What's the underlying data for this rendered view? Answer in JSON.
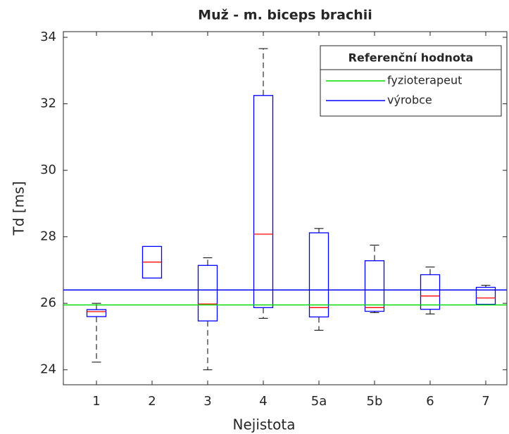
{
  "chart_data": {
    "type": "box",
    "title": "Muž - m. biceps brachii",
    "xlabel": "Nejistota",
    "ylabel": "Td [ms]",
    "categories": [
      "1",
      "2",
      "3",
      "4",
      "5a",
      "5b",
      "6",
      "7"
    ],
    "boxes": [
      {
        "whislo": 24.23,
        "q1": 25.6,
        "med": 25.75,
        "q3": 25.81,
        "whishi": 26.0
      },
      {
        "whislo": null,
        "q1": 26.76,
        "med": 27.24,
        "q3": 27.71,
        "whishi": null
      },
      {
        "whislo": 24.0,
        "q1": 25.47,
        "med": 25.98,
        "q3": 27.14,
        "whishi": 27.37
      },
      {
        "whislo": 25.55,
        "q1": 25.87,
        "med": 28.08,
        "q3": 32.25,
        "whishi": 33.66
      },
      {
        "whislo": 25.19,
        "q1": 25.59,
        "med": 25.87,
        "q3": 28.12,
        "whishi": 28.25
      },
      {
        "whislo": 25.72,
        "q1": 25.76,
        "med": 25.87,
        "q3": 27.28,
        "whishi": 27.75
      },
      {
        "whislo": 25.68,
        "q1": 25.82,
        "med": 26.22,
        "q3": 26.86,
        "whishi": 27.09
      },
      {
        "whislo": 25.95,
        "q1": 25.97,
        "med": 26.16,
        "q3": 26.48,
        "whishi": 26.54
      }
    ],
    "box_color": "#0000ff",
    "median_color": "#ff0000",
    "whisker_color": "#000000",
    "reference_lines": [
      {
        "name": "fyzioterapeut",
        "color": "#00dd00",
        "value": 25.95
      },
      {
        "name": "výrobce",
        "color": "#0000ff",
        "value": 26.4
      }
    ],
    "legend_title": "Referenční hodnota",
    "legend": "upper right",
    "ylim": [
      23.55,
      34.17
    ],
    "yticks": [
      24,
      26,
      28,
      30,
      32,
      34
    ]
  }
}
